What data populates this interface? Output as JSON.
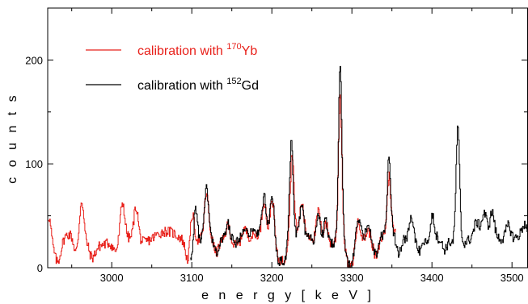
{
  "chart_data": {
    "type": "line",
    "xlabel": "e n e r g y   [ k e V ]",
    "ylabel": "c o u n t s",
    "xlim": [
      2920,
      3520
    ],
    "ylim": [
      0,
      250
    ],
    "xticks": [
      3000,
      3100,
      3200,
      3300,
      3400,
      3500
    ],
    "yticks": [
      0,
      100,
      200
    ],
    "grid": false,
    "legend_position": "top-left",
    "colors": {
      "red": "#e8201a",
      "black": "#000000"
    },
    "series": [
      {
        "key": "yb",
        "legend_prefix": "calibration with ",
        "legend_sup": "170",
        "legend_elem": "Yb",
        "color": "#e8201a",
        "baseline": 28,
        "start": 2920,
        "end": 3355,
        "peaks": [
          [
            2921,
            22,
            2.5
          ],
          [
            2962,
            35,
            2.5
          ],
          [
            3013,
            35,
            2.8
          ],
          [
            3030,
            33,
            2.8
          ],
          [
            3100,
            30,
            2.5
          ],
          [
            3118,
            42,
            2.5
          ],
          [
            3145,
            18,
            3
          ],
          [
            3165,
            12,
            3
          ],
          [
            3190,
            33,
            2.5
          ],
          [
            3200,
            38,
            2.5
          ],
          [
            3225,
            80,
            2.2
          ],
          [
            3237,
            28,
            2.5
          ],
          [
            3258,
            30,
            2.5
          ],
          [
            3267,
            22,
            2.5
          ],
          [
            3285,
            140,
            2.1
          ],
          [
            3308,
            18,
            3
          ],
          [
            3320,
            12,
            3
          ],
          [
            3346,
            55,
            2.2
          ]
        ],
        "dips": [
          [
            2932,
            22,
            4
          ],
          [
            2955,
            18,
            3
          ],
          [
            2975,
            14,
            4
          ],
          [
            3005,
            12,
            4
          ],
          [
            3095,
            20,
            3
          ],
          [
            3130,
            14,
            3
          ],
          [
            3208,
            18,
            3
          ],
          [
            3215,
            20,
            3
          ],
          [
            3295,
            22,
            3
          ],
          [
            3300,
            20,
            3
          ],
          [
            3330,
            16,
            3
          ]
        ]
      },
      {
        "key": "gd",
        "legend_prefix": "calibration with ",
        "legend_sup": "152",
        "legend_elem": "Gd",
        "color": "#000000",
        "baseline": 28,
        "start": 3098,
        "end": 3520,
        "peaks": [
          [
            3104,
            36,
            2.5
          ],
          [
            3118,
            48,
            2.5
          ],
          [
            3145,
            18,
            3
          ],
          [
            3165,
            12,
            3
          ],
          [
            3190,
            35,
            2.5
          ],
          [
            3200,
            40,
            2.5
          ],
          [
            3224,
            92,
            2.2
          ],
          [
            3237,
            28,
            2.5
          ],
          [
            3258,
            30,
            2.5
          ],
          [
            3267,
            24,
            2.5
          ],
          [
            3285,
            165,
            2.1
          ],
          [
            3308,
            18,
            3
          ],
          [
            3320,
            12,
            3
          ],
          [
            3346,
            70,
            2.2
          ],
          [
            3374,
            25,
            2.5
          ],
          [
            3400,
            22,
            2.5
          ],
          [
            3432,
            112,
            2.2
          ],
          [
            3455,
            12,
            3
          ],
          [
            3465,
            18,
            3
          ],
          [
            3475,
            22,
            2.5
          ],
          [
            3495,
            14,
            3
          ],
          [
            3515,
            10,
            3
          ]
        ],
        "dips": [
          [
            3100,
            20,
            2
          ],
          [
            3130,
            14,
            3
          ],
          [
            3208,
            18,
            3
          ],
          [
            3215,
            20,
            3
          ],
          [
            3295,
            22,
            3
          ],
          [
            3300,
            20,
            3
          ],
          [
            3330,
            16,
            3
          ],
          [
            3358,
            18,
            3
          ],
          [
            3385,
            8,
            3
          ],
          [
            3415,
            10,
            3
          ]
        ]
      }
    ]
  }
}
